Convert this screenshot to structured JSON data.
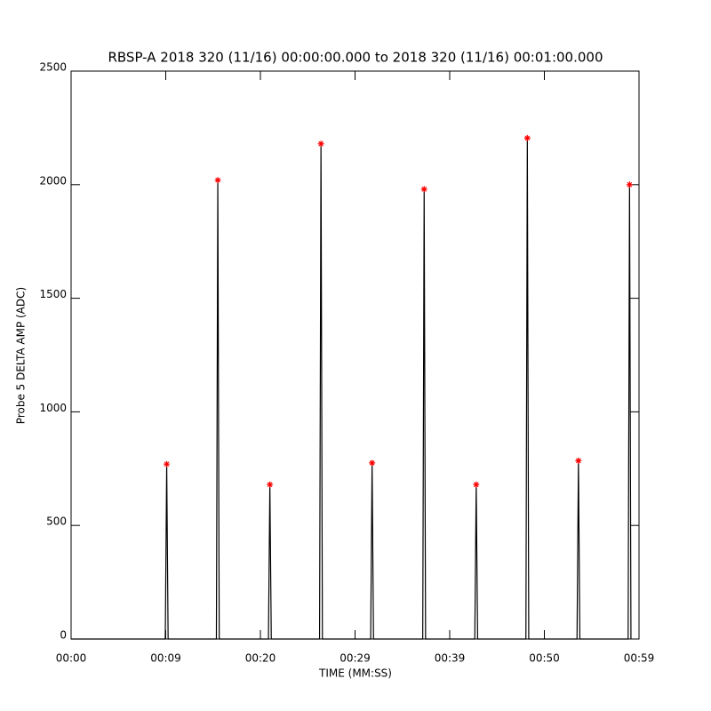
{
  "chart_data": {
    "type": "line",
    "title": "RBSP-A 2018 320 (11/16) 00:00:00.000 to 2018 320 (11/16) 00:01:00.000",
    "x_label": "TIME (MM:SS)",
    "y_label": "Probe 5 DELTA AMP (ADC)",
    "xlim": [
      0,
      60
    ],
    "xticks": [
      {
        "value": 0,
        "label": "00:00"
      },
      {
        "value": 10,
        "label": "00:09"
      },
      {
        "value": 20,
        "label": "00:20"
      },
      {
        "value": 30,
        "label": "00:29"
      },
      {
        "value": 40,
        "label": "00:39"
      },
      {
        "value": 50,
        "label": "00:50"
      },
      {
        "value": 60,
        "label": "00:59"
      }
    ],
    "ylim": [
      0,
      2500
    ],
    "yticks": [
      0,
      500,
      1000,
      1500,
      2000,
      2500
    ],
    "series": [
      {
        "color": "#000000",
        "x": [
          0,
          9.95,
          10.1,
          10.25,
          15.35,
          15.5,
          15.65,
          20.85,
          21.0,
          21.15,
          26.25,
          26.4,
          26.55,
          31.65,
          31.8,
          31.95,
          37.15,
          37.3,
          37.45,
          42.65,
          42.8,
          42.95,
          48.05,
          48.2,
          48.35,
          53.45,
          53.6,
          53.75,
          58.85,
          59.0,
          59.15
        ],
        "values": [
          0,
          0,
          770,
          0,
          0,
          2020,
          0,
          0,
          680,
          0,
          0,
          2180,
          0,
          0,
          775,
          0,
          0,
          1980,
          0,
          0,
          680,
          0,
          0,
          2205,
          0,
          0,
          785,
          0,
          0,
          2000,
          0
        ]
      },
      {
        "color": "#ff0000",
        "marker": "star",
        "x": [
          10.1,
          15.5,
          21.0,
          26.4,
          31.8,
          37.3,
          42.8,
          48.2,
          53.6,
          59.0
        ],
        "values": [
          770,
          2020,
          680,
          2180,
          775,
          1980,
          680,
          2205,
          785,
          2000
        ]
      }
    ]
  }
}
